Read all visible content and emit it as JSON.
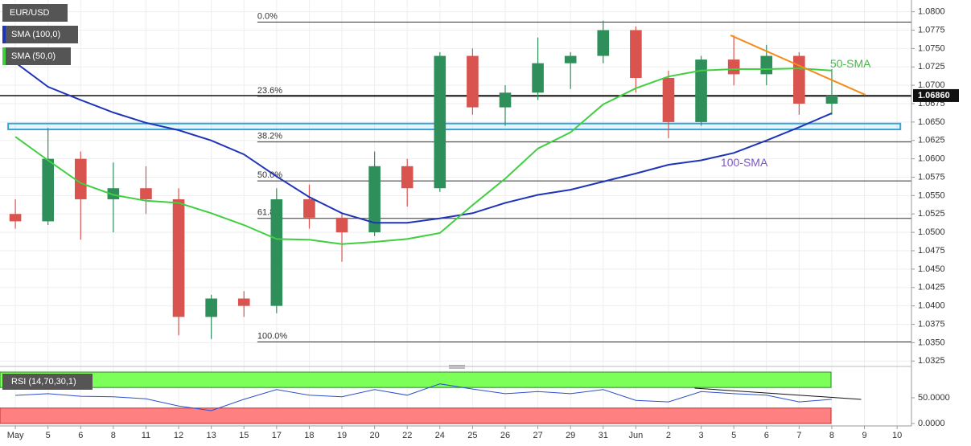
{
  "chart_data": {
    "type": "candlestick",
    "title": "EUR/USD",
    "categories": [
      "May",
      "5",
      "6",
      "8",
      "11",
      "12",
      "13",
      "15",
      "17",
      "18",
      "19",
      "20",
      "22",
      "24",
      "25",
      "26",
      "27",
      "29",
      "31",
      "Jun",
      "2",
      "3",
      "5",
      "6",
      "7",
      "8",
      "9",
      "10"
    ],
    "open": [
      1.0525,
      1.0515,
      1.06,
      1.0545,
      1.056,
      1.0545,
      1.0385,
      1.041,
      1.04,
      1.0545,
      1.052,
      1.05,
      1.059,
      1.056,
      1.074,
      1.067,
      1.069,
      1.073,
      1.074,
      1.0775,
      1.071,
      1.065,
      1.0735,
      1.0715,
      1.074,
      1.0675,
      null,
      null
    ],
    "high": [
      1.0545,
      1.0642,
      1.061,
      1.0595,
      1.059,
      1.056,
      1.0415,
      1.042,
      1.056,
      1.0565,
      1.0525,
      1.061,
      1.06,
      1.0745,
      1.075,
      1.07,
      1.0765,
      1.0745,
      1.0788,
      1.078,
      1.072,
      1.074,
      1.0768,
      1.0755,
      1.0745,
      1.0722,
      null,
      null
    ],
    "low": [
      1.0505,
      1.051,
      1.049,
      1.05,
      1.0525,
      1.036,
      1.0355,
      1.0385,
      1.039,
      1.0505,
      1.046,
      1.0495,
      1.0535,
      1.0555,
      1.066,
      1.0645,
      1.068,
      1.0695,
      1.073,
      1.069,
      1.0628,
      1.0645,
      1.07,
      1.07,
      1.066,
      1.066,
      null,
      null
    ],
    "close": [
      1.0515,
      1.06,
      1.0545,
      1.056,
      1.0545,
      1.0385,
      1.041,
      1.04,
      1.0545,
      1.052,
      1.05,
      1.059,
      1.056,
      1.074,
      1.067,
      1.069,
      1.073,
      1.074,
      1.0775,
      1.071,
      1.065,
      1.0735,
      1.0715,
      1.074,
      1.0675,
      1.0686,
      null,
      null
    ],
    "up_color": "#2f8f5b",
    "down_color": "#d9534f",
    "series": [
      {
        "name": "SMA (100,0)",
        "color": "#1f35b8",
        "values": [
          1.0731,
          1.0698,
          1.068,
          1.0663,
          1.0649,
          1.0639,
          1.0625,
          1.0606,
          1.0576,
          1.0548,
          1.0526,
          1.0513,
          1.0513,
          1.0519,
          1.0526,
          1.054,
          1.0551,
          1.0558,
          1.0569,
          1.058,
          1.0592,
          1.0598,
          1.0608,
          1.0625,
          1.0643,
          1.0662,
          null,
          null
        ]
      },
      {
        "name": "SMA (50,0)",
        "color": "#3fcf3f",
        "values": [
          1.063,
          1.0598,
          1.0567,
          1.0551,
          1.0543,
          1.054,
          1.0526,
          1.051,
          1.0491,
          1.049,
          1.0484,
          1.0487,
          1.0491,
          1.0499,
          1.0537,
          1.0573,
          1.0614,
          1.0636,
          1.0674,
          1.0696,
          1.0712,
          1.072,
          1.0722,
          1.0722,
          1.0723,
          1.072,
          null,
          null
        ]
      }
    ],
    "annotations": [
      {
        "text": "50-SMA",
        "x": 24.95,
        "y": 1.0728,
        "color": "#43b843"
      },
      {
        "text": "100-SMA",
        "x": 21.6,
        "y": 1.0594,
        "color": "#7e57c2"
      }
    ],
    "trendline": {
      "x": [
        21.9,
        26.03
      ],
      "y": [
        1.0768,
        1.0687
      ],
      "color": "#f28c1c"
    },
    "zone": {
      "x": [
        -0.22,
        27.1
      ],
      "y": [
        1.064,
        1.0648
      ],
      "color": "#3ba3d9"
    },
    "levels_start": 7.41,
    "levels": [
      {
        "label": "0.0%",
        "value": 1.0786
      },
      {
        "label": "23.6%",
        "value": 1.0685
      },
      {
        "label": "38.2%",
        "value": 1.0623
      },
      {
        "label": "50.0%",
        "value": 1.057
      },
      {
        "label": "61.8%",
        "value": 1.0519
      },
      {
        "label": "100.0%",
        "value": 1.0351
      }
    ],
    "last_price": {
      "value": 1.0686,
      "label": "1.06860"
    },
    "xlim": [
      -0.47,
      27.44
    ],
    "ylim": [
      1.0322,
      1.0816
    ],
    "yticks": [
      {
        "value": 1.08,
        "label": "1.0800"
      },
      {
        "value": 1.0775,
        "label": "1.0775"
      },
      {
        "value": 1.075,
        "label": "1.0750"
      },
      {
        "value": 1.0725,
        "label": "1.0725"
      },
      {
        "value": 1.07,
        "label": "1.0700"
      },
      {
        "value": 1.0675,
        "label": "1.0675"
      },
      {
        "value": 1.065,
        "label": "1.0650"
      },
      {
        "value": 1.0625,
        "label": "1.0625"
      },
      {
        "value": 1.06,
        "label": "1.0600"
      },
      {
        "value": 1.0575,
        "label": "1.0575"
      },
      {
        "value": 1.055,
        "label": "1.0550"
      },
      {
        "value": 1.0525,
        "label": "1.0525"
      },
      {
        "value": 1.05,
        "label": "1.0500"
      },
      {
        "value": 1.0475,
        "label": "1.0475"
      },
      {
        "value": 1.045,
        "label": "1.0450"
      },
      {
        "value": 1.0425,
        "label": "1.0425"
      },
      {
        "value": 1.04,
        "label": "1.0400"
      },
      {
        "value": 1.0375,
        "label": "1.0375"
      },
      {
        "value": 1.035,
        "label": "1.0350"
      },
      {
        "value": 1.0325,
        "label": "1.0325"
      }
    ],
    "grid": true,
    "rsi": {
      "title": "RSI (14,70,30,1)",
      "color": "#2b4fcf",
      "values": [
        54.7,
        58,
        53,
        52,
        48,
        34,
        25,
        47,
        66,
        55,
        52,
        66,
        55,
        77,
        67,
        58,
        62,
        58,
        66,
        45,
        42,
        62,
        58,
        55,
        42,
        47,
        null,
        null
      ],
      "ylim": [
        0,
        100
      ],
      "yticks": [
        {
          "value": 50,
          "label": "50.0000"
        },
        {
          "value": 0,
          "label": "0.0000"
        }
      ],
      "overbought": 70,
      "oversold": 30,
      "trendline": {
        "x": [
          20.8,
          25.9
        ],
        "y": [
          68.75,
          46.9
        ]
      }
    }
  }
}
